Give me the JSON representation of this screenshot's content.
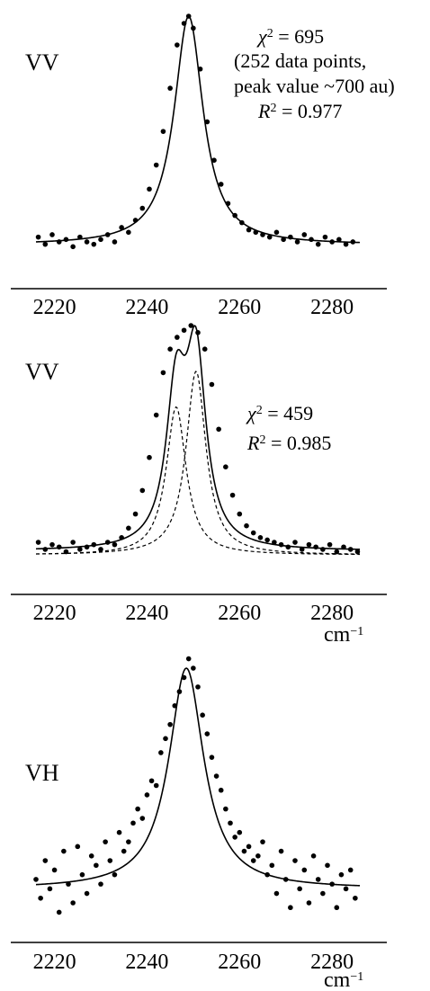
{
  "chart_data": [
    {
      "type": "scatter",
      "panel_label": "VV",
      "x_ticks": [
        "2220",
        "2240",
        "2260",
        "2280"
      ],
      "xlim": [
        2213,
        2292
      ],
      "xlabel": "",
      "annotations": {
        "chi_symbol": "χ",
        "chi_exp": "2",
        "chi_value": " = 695",
        "note_line1": "(252 data points,",
        "note_line2": "peak value ~700 au)",
        "r_symbol": "R",
        "r_exp": "2",
        "r_value": " = 0.977"
      },
      "model": {
        "background": 0.05,
        "components": [
          {
            "center": 2249,
            "hwhm": 3.8,
            "amplitude": 1.0
          }
        ]
      },
      "series": [
        {
          "style": "points",
          "x": [
            2216.5,
            2218.0,
            2219.5,
            2221.0,
            2222.5,
            2224.0,
            2225.5,
            2227.0,
            2228.5,
            2230.0,
            2231.5,
            2233.0,
            2234.5,
            2236.0,
            2237.5,
            2239.0,
            2240.5,
            2242.0,
            2243.5,
            2245.0,
            2246.5,
            2248.0,
            2249.0,
            2250.0,
            2251.5,
            2253.0,
            2254.5,
            2256.0,
            2257.5,
            2259.0,
            2260.5,
            2262.0,
            2263.5,
            2265.0,
            2266.5,
            2268.0,
            2269.5,
            2271.0,
            2272.5,
            2274.0,
            2275.5,
            2277.0,
            2278.5,
            2280.0,
            2281.5,
            2283.0,
            2284.5
          ],
          "y": [
            0.08,
            0.05,
            0.09,
            0.06,
            0.07,
            0.04,
            0.08,
            0.06,
            0.05,
            0.07,
            0.09,
            0.06,
            0.12,
            0.1,
            0.15,
            0.2,
            0.28,
            0.38,
            0.52,
            0.7,
            0.88,
            0.97,
            1.0,
            0.95,
            0.78,
            0.56,
            0.4,
            0.3,
            0.22,
            0.17,
            0.14,
            0.11,
            0.1,
            0.09,
            0.08,
            0.1,
            0.07,
            0.08,
            0.06,
            0.09,
            0.07,
            0.05,
            0.08,
            0.06,
            0.07,
            0.05,
            0.06
          ]
        },
        {
          "style": "fit-line",
          "name": ""
        }
      ]
    },
    {
      "type": "scatter",
      "panel_label": "VV",
      "x_ticks": [
        "2220",
        "2240",
        "2260",
        "2280"
      ],
      "xlim": [
        2213,
        2292
      ],
      "xlabel": "cm",
      "xlabel_exp": "−1",
      "annotations": {
        "chi_symbol": "χ",
        "chi_exp": "2",
        "chi_value": " = 459",
        "r_symbol": "R",
        "r_exp": "2",
        "r_value": " = 0.985"
      },
      "model": {
        "background": 0.04,
        "components": [
          {
            "center": 2246.3,
            "hwhm": 2.6,
            "amplitude": 0.58
          },
          {
            "center": 2250.6,
            "hwhm": 2.6,
            "amplitude": 0.72
          }
        ]
      },
      "series": [
        {
          "style": "points",
          "x": [
            2216.5,
            2218.0,
            2219.5,
            2221.0,
            2222.5,
            2224.0,
            2225.5,
            2227.0,
            2228.5,
            2230.0,
            2231.5,
            2233.0,
            2234.5,
            2236.0,
            2237.5,
            2239.0,
            2240.5,
            2242.0,
            2243.5,
            2245.0,
            2246.5,
            2248.0,
            2249.5,
            2251.0,
            2252.5,
            2254.0,
            2255.5,
            2257.0,
            2258.5,
            2260.0,
            2261.5,
            2263.0,
            2264.5,
            2266.0,
            2267.5,
            2269.0,
            2270.5,
            2272.0,
            2273.5,
            2275.0,
            2276.5,
            2278.0,
            2279.5,
            2281.0,
            2282.5,
            2284.0,
            2285.5
          ],
          "y": [
            0.08,
            0.05,
            0.07,
            0.06,
            0.04,
            0.08,
            0.05,
            0.06,
            0.07,
            0.05,
            0.08,
            0.07,
            0.1,
            0.14,
            0.2,
            0.3,
            0.44,
            0.62,
            0.8,
            0.9,
            0.95,
            0.98,
            1.0,
            0.97,
            0.9,
            0.75,
            0.56,
            0.4,
            0.28,
            0.2,
            0.15,
            0.12,
            0.1,
            0.09,
            0.08,
            0.07,
            0.06,
            0.08,
            0.05,
            0.07,
            0.06,
            0.05,
            0.07,
            0.04,
            0.06,
            0.05,
            0.04
          ]
        },
        {
          "style": "fit-line",
          "name": ""
        },
        {
          "style": "component-dashed",
          "name": ""
        },
        {
          "style": "component-dashed",
          "name": ""
        }
      ]
    },
    {
      "type": "scatter",
      "panel_label": "VH",
      "x_ticks": [
        "2220",
        "2240",
        "2260",
        "2280"
      ],
      "xlim": [
        2213,
        2292
      ],
      "xlabel": "cm",
      "xlabel_exp": "−1",
      "annotations": {},
      "model": {
        "background": 0.06,
        "components": [
          {
            "center": 2248.5,
            "hwhm": 4.6,
            "amplitude": 0.95
          }
        ]
      },
      "series": [
        {
          "style": "points",
          "x": [
            2216.0,
            2217.0,
            2218.0,
            2219.0,
            2220.0,
            2221.0,
            2222.0,
            2223.0,
            2224.0,
            2225.0,
            2226.0,
            2227.0,
            2228.0,
            2229.0,
            2230.0,
            2231.0,
            2232.0,
            2233.0,
            2234.0,
            2235.0,
            2236.0,
            2237.0,
            2238.0,
            2239.0,
            2240.0,
            2241.0,
            2242.0,
            2243.0,
            2244.0,
            2245.0,
            2246.0,
            2247.0,
            2248.0,
            2249.0,
            2250.0,
            2251.0,
            2252.0,
            2253.0,
            2254.0,
            2255.0,
            2256.0,
            2257.0,
            2258.0,
            2259.0,
            2260.0,
            2261.0,
            2262.0,
            2263.0,
            2264.0,
            2265.0,
            2266.0,
            2267.0,
            2268.0,
            2269.0,
            2270.0,
            2271.0,
            2272.0,
            2273.0,
            2274.0,
            2275.0,
            2276.0,
            2277.0,
            2278.0,
            2279.0,
            2280.0,
            2281.0,
            2282.0,
            2283.0,
            2284.0,
            2285.0
          ],
          "y": [
            0.1,
            0.02,
            0.18,
            0.06,
            0.14,
            -0.04,
            0.22,
            0.08,
            0.0,
            0.24,
            0.12,
            0.04,
            0.2,
            0.16,
            0.08,
            0.26,
            0.18,
            0.12,
            0.3,
            0.22,
            0.26,
            0.34,
            0.4,
            0.36,
            0.46,
            0.52,
            0.5,
            0.64,
            0.7,
            0.76,
            0.84,
            0.9,
            0.96,
            1.04,
            1.0,
            0.92,
            0.8,
            0.72,
            0.62,
            0.54,
            0.48,
            0.4,
            0.34,
            0.28,
            0.3,
            0.22,
            0.24,
            0.18,
            0.2,
            0.26,
            0.12,
            0.16,
            0.04,
            0.22,
            0.1,
            -0.02,
            0.18,
            0.06,
            0.14,
            0.0,
            0.2,
            0.1,
            0.04,
            0.16,
            0.08,
            -0.02,
            0.12,
            0.06,
            0.14,
            0.02
          ]
        },
        {
          "style": "fit-line",
          "name": ""
        }
      ]
    }
  ]
}
